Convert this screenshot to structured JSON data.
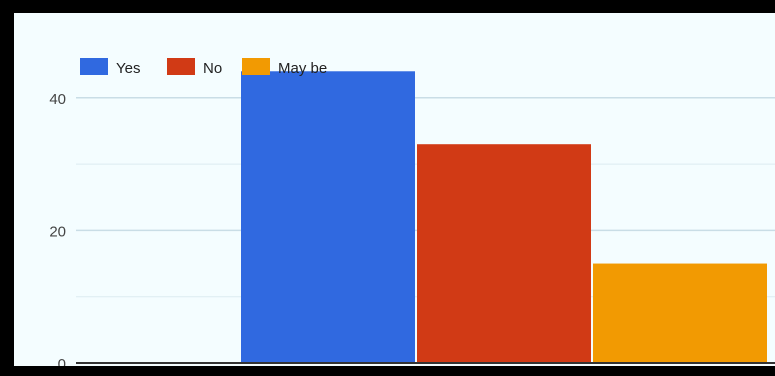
{
  "chart_data": {
    "type": "bar",
    "categories": [
      ""
    ],
    "series": [
      {
        "name": "Yes",
        "values": [
          44
        ]
      },
      {
        "name": "No",
        "values": [
          33
        ]
      },
      {
        "name": "May be",
        "values": [
          15
        ]
      }
    ],
    "colors": [
      "#3069e0",
      "#d13a15",
      "#f29a02"
    ],
    "ylim": [
      0,
      50
    ],
    "yticks": [
      "0",
      "20",
      "40"
    ],
    "ytick_values": [
      0,
      20,
      40
    ],
    "gridlines": [
      10,
      30
    ],
    "grid": true,
    "legend_position": "top-left",
    "title": "",
    "xlabel": "",
    "ylabel": ""
  }
}
